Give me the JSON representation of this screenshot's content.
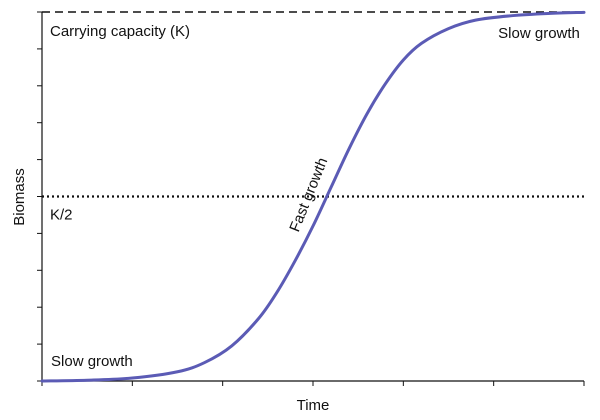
{
  "chart_data": {
    "type": "line",
    "xlabel": "Time",
    "ylabel": "Biomass",
    "xlim": [
      0,
      6
    ],
    "ylim": [
      0,
      100
    ],
    "x_ticks": [
      0,
      1,
      2,
      3,
      4,
      5,
      6
    ],
    "y_ticks": [
      0,
      10,
      20,
      30,
      40,
      50,
      60,
      70,
      80,
      90,
      100
    ],
    "grid": false,
    "series": [
      {
        "color": "#5b5bb5",
        "x": [
          0,
          0.5,
          1,
          1.5,
          1.8,
          2.1,
          2.4,
          2.6,
          2.8,
          3.0,
          3.2,
          3.4,
          3.6,
          3.8,
          4.0,
          4.2,
          4.5,
          4.8,
          5.2,
          5.6,
          6
        ],
        "y": [
          0,
          0.2,
          0.8,
          2.5,
          5.0,
          9.5,
          17.0,
          24.0,
          32.5,
          42.0,
          52.5,
          63.0,
          72.5,
          80.5,
          87.0,
          91.5,
          95.5,
          97.8,
          99.0,
          99.6,
          99.9
        ]
      }
    ],
    "reference_lines": [
      {
        "y": 100,
        "style": "dashed",
        "label": "Carrying capacity (K)"
      },
      {
        "y": 50,
        "style": "dotted",
        "label": "K/2"
      }
    ],
    "annotations": [
      {
        "text": "Slow growth",
        "x": 0.1,
        "y": 4,
        "rotate": 0
      },
      {
        "text": "Fast growth",
        "x": 3.0,
        "y": 50,
        "rotate": -68
      },
      {
        "text": "Slow growth",
        "x": 5.05,
        "y": 93,
        "rotate": 0
      }
    ]
  }
}
